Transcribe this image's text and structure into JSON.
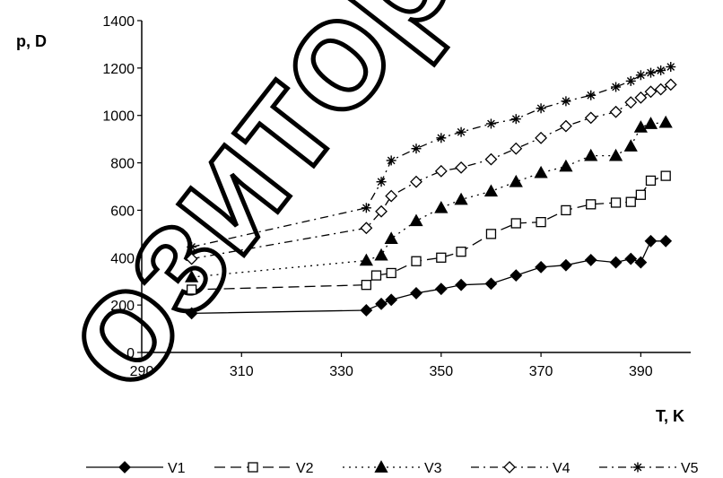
{
  "chart_data": {
    "type": "line",
    "title": "",
    "xlabel": "T, K",
    "ylabel": "p, D",
    "xlim": [
      290,
      400
    ],
    "ylim": [
      0,
      1400
    ],
    "x_ticks": [
      290,
      310,
      330,
      350,
      370,
      390
    ],
    "y_ticks": [
      0,
      200,
      400,
      600,
      800,
      1000,
      1200,
      1400
    ],
    "grid": false,
    "legend_position": "bottom",
    "series": [
      {
        "name": "V1",
        "marker": "diamond-filled",
        "dash": "solid",
        "points": [
          [
            300,
            165
          ],
          [
            335,
            178
          ],
          [
            338,
            205
          ],
          [
            340,
            222
          ],
          [
            345,
            250
          ],
          [
            350,
            268
          ],
          [
            354,
            285
          ],
          [
            360,
            290
          ],
          [
            365,
            325
          ],
          [
            370,
            360
          ],
          [
            375,
            368
          ],
          [
            380,
            390
          ],
          [
            385,
            380
          ],
          [
            388,
            395
          ],
          [
            390,
            380
          ],
          [
            392,
            470
          ],
          [
            395,
            470
          ]
        ]
      },
      {
        "name": "V2",
        "marker": "square-open",
        "dash": "long-dash",
        "points": [
          [
            300,
            265
          ],
          [
            335,
            285
          ],
          [
            337,
            325
          ],
          [
            340,
            335
          ],
          [
            345,
            385
          ],
          [
            350,
            400
          ],
          [
            354,
            425
          ],
          [
            360,
            500
          ],
          [
            365,
            545
          ],
          [
            370,
            550
          ],
          [
            375,
            600
          ],
          [
            380,
            625
          ],
          [
            385,
            632
          ],
          [
            388,
            635
          ],
          [
            390,
            665
          ],
          [
            392,
            725
          ],
          [
            395,
            745
          ]
        ]
      },
      {
        "name": "V3",
        "marker": "triangle-filled",
        "dash": "dotted",
        "points": [
          [
            300,
            318
          ],
          [
            335,
            388
          ],
          [
            338,
            410
          ],
          [
            340,
            480
          ],
          [
            345,
            555
          ],
          [
            350,
            610
          ],
          [
            354,
            645
          ],
          [
            360,
            680
          ],
          [
            365,
            720
          ],
          [
            370,
            758
          ],
          [
            375,
            785
          ],
          [
            380,
            830
          ],
          [
            385,
            830
          ],
          [
            388,
            870
          ],
          [
            390,
            950
          ],
          [
            392,
            965
          ],
          [
            395,
            970
          ]
        ]
      },
      {
        "name": "V4",
        "marker": "diamond-open",
        "dash": "dash-dot",
        "points": [
          [
            300,
            395
          ],
          [
            335,
            525
          ],
          [
            338,
            595
          ],
          [
            340,
            660
          ],
          [
            345,
            720
          ],
          [
            350,
            765
          ],
          [
            354,
            780
          ],
          [
            360,
            815
          ],
          [
            365,
            860
          ],
          [
            370,
            905
          ],
          [
            375,
            955
          ],
          [
            380,
            990
          ],
          [
            385,
            1015
          ],
          [
            388,
            1055
          ],
          [
            390,
            1075
          ],
          [
            392,
            1100
          ],
          [
            394,
            1110
          ],
          [
            396,
            1130
          ]
        ]
      },
      {
        "name": "V5",
        "marker": "asterisk",
        "dash": "dash-dot",
        "points": [
          [
            300,
            445
          ],
          [
            335,
            610
          ],
          [
            338,
            720
          ],
          [
            340,
            810
          ],
          [
            345,
            860
          ],
          [
            350,
            905
          ],
          [
            354,
            930
          ],
          [
            360,
            965
          ],
          [
            365,
            985
          ],
          [
            370,
            1030
          ],
          [
            375,
            1060
          ],
          [
            380,
            1085
          ],
          [
            385,
            1120
          ],
          [
            388,
            1145
          ],
          [
            390,
            1170
          ],
          [
            392,
            1180
          ],
          [
            394,
            1190
          ],
          [
            396,
            1205
          ]
        ]
      }
    ]
  },
  "watermark": {
    "text": "озитор",
    "color": "#000000"
  }
}
